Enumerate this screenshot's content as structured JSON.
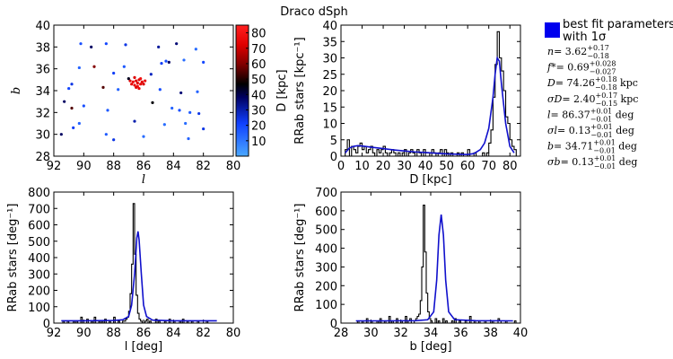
{
  "figure_title": "Draco dSph",
  "colors": {
    "fit_line": "#1010cc",
    "hist": "#000000",
    "legend_patch": "#0000ee"
  },
  "legend": {
    "header_line1": "best fit parameters",
    "header_line2": "with 1σ",
    "params": [
      {
        "sym": "n",
        "val": "= 3.62",
        "up": "+0.17",
        "lo": "−0.18",
        "unit": ""
      },
      {
        "sym": "f*",
        "val": "= 0.69",
        "up": "+0.028",
        "lo": "−0.027",
        "unit": ""
      },
      {
        "sym": "D",
        "val": "= 74.26",
        "up": "+0.18",
        "lo": "−0.18",
        "unit": " kpc"
      },
      {
        "sym": "σD",
        "val": "= 2.40",
        "up": "+0.17",
        "lo": "−0.15",
        "unit": " kpc"
      },
      {
        "sym": "l",
        "val": "= 86.37",
        "up": "+0.01",
        "lo": "−0.01",
        "unit": " deg"
      },
      {
        "sym": "σl",
        "val": "= 0.13",
        "up": "+0.01",
        "lo": "−0.01",
        "unit": " deg"
      },
      {
        "sym": "b",
        "val": "= 34.71",
        "up": "+0.01",
        "lo": "−0.01",
        "unit": " deg"
      },
      {
        "sym": "σb",
        "val": "= 0.13",
        "up": "+0.01",
        "lo": "−0.01",
        "unit": " deg"
      }
    ]
  },
  "chart_data": [
    {
      "type": "scatter",
      "xlabel": "l",
      "ylabel": "b",
      "xlim": [
        92,
        80
      ],
      "ylim": [
        28,
        40
      ],
      "xticks": [
        "92",
        "90",
        "88",
        "86",
        "84",
        "82",
        "80"
      ],
      "yticks": [
        "28",
        "30",
        "32",
        "34",
        "36",
        "38",
        "40"
      ],
      "colorbar": {
        "label": "D [kpc]",
        "range": [
          0,
          85
        ],
        "ticks": [
          "10",
          "20",
          "30",
          "40",
          "50",
          "60",
          "70",
          "80"
        ]
      },
      "points": [
        [
          86.4,
          34.7,
          74
        ],
        [
          86.5,
          34.9,
          72
        ],
        [
          86.2,
          34.6,
          76
        ],
        [
          86.6,
          34.5,
          75
        ],
        [
          86.3,
          35.0,
          73
        ],
        [
          86.7,
          34.8,
          77
        ],
        [
          86.1,
          34.8,
          74
        ],
        [
          86.4,
          34.4,
          78
        ],
        [
          86.0,
          34.6,
          71
        ],
        [
          86.8,
          34.6,
          75
        ],
        [
          86.5,
          34.3,
          73
        ],
        [
          86.2,
          35.1,
          79
        ],
        [
          86.9,
          34.9,
          74
        ],
        [
          85.9,
          34.9,
          76
        ],
        [
          86.3,
          34.2,
          75
        ],
        [
          86.6,
          35.2,
          72
        ],
        [
          90.2,
          38.3,
          18
        ],
        [
          89.5,
          38.0,
          38
        ],
        [
          88.5,
          38.3,
          20
        ],
        [
          87.2,
          38.2,
          24
        ],
        [
          85.0,
          38.0,
          32
        ],
        [
          83.8,
          38.3,
          36
        ],
        [
          82.5,
          37.8,
          12
        ],
        [
          84.5,
          36.7,
          18
        ],
        [
          84.8,
          36.5,
          22
        ],
        [
          84.3,
          36.6,
          38
        ],
        [
          82.0,
          36.6,
          20
        ],
        [
          89.3,
          36.2,
          60
        ],
        [
          90.3,
          36.1,
          14
        ],
        [
          87.3,
          36.2,
          16
        ],
        [
          88.0,
          35.6,
          22
        ],
        [
          85.5,
          35.5,
          28
        ],
        [
          83.3,
          36.8,
          12
        ],
        [
          90.8,
          34.6,
          24
        ],
        [
          91.0,
          34.2,
          20
        ],
        [
          88.7,
          34.3,
          55
        ],
        [
          87.7,
          34.1,
          14
        ],
        [
          84.9,
          34.1,
          18
        ],
        [
          83.5,
          33.8,
          36
        ],
        [
          82.4,
          33.9,
          14
        ],
        [
          91.3,
          33.0,
          38
        ],
        [
          90.8,
          32.4,
          55
        ],
        [
          90.0,
          32.6,
          18
        ],
        [
          88.4,
          32.2,
          16
        ],
        [
          84.1,
          32.4,
          14
        ],
        [
          83.6,
          32.2,
          18
        ],
        [
          82.9,
          32.0,
          16
        ],
        [
          82.3,
          31.9,
          24
        ],
        [
          90.3,
          31.0,
          14
        ],
        [
          86.6,
          31.2,
          30
        ],
        [
          84.6,
          30.9,
          12
        ],
        [
          83.2,
          31.0,
          12
        ],
        [
          82.0,
          30.5,
          24
        ],
        [
          88.5,
          30.0,
          16
        ],
        [
          91.5,
          30.0,
          38
        ],
        [
          88.0,
          29.5,
          24
        ],
        [
          86.0,
          29.8,
          12
        ],
        [
          83.0,
          29.6,
          14
        ],
        [
          90.7,
          30.6,
          22
        ],
        [
          85.4,
          32.9,
          46
        ],
        [
          87.0,
          35.1,
          44
        ]
      ]
    },
    {
      "type": "bar",
      "xlabel": "D [kpc]",
      "ylabel": "RRab stars [kpc⁻¹]",
      "xlim": [
        0,
        85
      ],
      "ylim": [
        0,
        40
      ],
      "xticks": [
        "0",
        "10",
        "20",
        "30",
        "40",
        "50",
        "60",
        "70",
        "80"
      ],
      "yticks": [
        "0",
        "5",
        "10",
        "15",
        "20",
        "25",
        "30",
        "35",
        "40"
      ],
      "hist": {
        "x0": 2,
        "dx": 1,
        "counts": [
          2,
          5,
          0,
          3,
          2,
          1,
          3,
          4,
          2,
          3,
          1,
          2,
          3,
          1,
          0,
          2,
          1,
          2,
          3,
          1,
          0,
          1,
          2,
          1,
          0,
          1,
          0,
          1,
          2,
          0,
          1,
          2,
          1,
          0,
          2,
          1,
          0,
          2,
          1,
          1,
          0,
          2,
          1,
          0,
          1,
          2,
          0,
          2,
          1,
          0,
          1,
          0,
          0,
          1,
          0,
          1,
          0,
          0,
          2,
          0,
          0,
          1,
          0,
          0,
          0,
          1,
          0,
          1,
          4,
          8,
          18,
          28,
          38,
          30,
          26,
          20,
          12,
          10,
          5,
          3,
          2
        ]
      },
      "fit": {
        "x": [
          2,
          4,
          6,
          8,
          10,
          15,
          20,
          25,
          30,
          35,
          40,
          45,
          50,
          55,
          60,
          63,
          66,
          68,
          70,
          72,
          73,
          74,
          75,
          76,
          78,
          80,
          82
        ],
        "y": [
          1.0,
          2.5,
          3.0,
          3.2,
          3.1,
          2.7,
          2.3,
          1.9,
          1.6,
          1.3,
          1.1,
          0.9,
          0.7,
          0.6,
          0.5,
          0.8,
          2.0,
          4.0,
          8.5,
          18,
          25,
          30,
          29,
          22,
          10,
          3,
          1
        ]
      }
    },
    {
      "type": "bar",
      "xlabel": "l [deg]",
      "ylabel": "RRab stars [deg⁻¹]",
      "xlim": [
        92,
        80
      ],
      "ylim": [
        0,
        800
      ],
      "xticks": [
        "92",
        "90",
        "88",
        "86",
        "84",
        "82",
        "80"
      ],
      "yticks": [
        "0",
        "100",
        "200",
        "300",
        "400",
        "500",
        "600",
        "700",
        "800"
      ],
      "hist": {
        "x0": 91.5,
        "dx": -0.1,
        "counts": [
          0,
          12,
          0,
          0,
          12,
          0,
          0,
          0,
          12,
          0,
          12,
          0,
          0,
          36,
          0,
          0,
          0,
          24,
          0,
          0,
          12,
          0,
          36,
          0,
          0,
          12,
          0,
          12,
          0,
          24,
          0,
          0,
          12,
          0,
          0,
          36,
          0,
          0,
          12,
          0,
          0,
          12,
          12,
          24,
          36,
          72,
          180,
          360,
          730,
          420,
          170,
          60,
          24,
          12,
          0,
          0,
          12,
          24,
          0,
          12,
          0,
          0,
          0,
          24,
          0,
          12,
          0,
          0,
          0,
          12,
          0,
          0,
          24,
          0,
          0,
          12,
          0,
          0,
          0,
          12,
          0,
          24,
          0,
          0,
          12,
          0,
          0,
          12,
          0,
          0,
          0,
          12,
          0,
          0,
          0,
          0,
          0,
          12,
          0,
          0,
          0,
          0,
          0,
          0,
          0,
          0
        ]
      },
      "fit": {
        "x": [
          91.5,
          90,
          88,
          87.4,
          87.0,
          86.8,
          86.6,
          86.45,
          86.37,
          86.3,
          86.15,
          86.0,
          85.8,
          85.4,
          84,
          82,
          81.1
        ],
        "y": [
          14,
          14,
          16,
          20,
          40,
          110,
          300,
          520,
          560,
          510,
          300,
          110,
          40,
          18,
          14,
          14,
          14
        ]
      }
    },
    {
      "type": "bar",
      "xlabel": "b [deg]",
      "ylabel": "RRab stars [deg⁻¹]",
      "xlim": [
        28,
        40
      ],
      "ylim": [
        0,
        700
      ],
      "xticks": [
        "28",
        "30",
        "32",
        "34",
        "36",
        "38",
        "40"
      ],
      "yticks": [
        "0",
        "100",
        "200",
        "300",
        "400",
        "500",
        "600",
        "700"
      ],
      "hist": {
        "x0": 29.0,
        "dx": 0.1,
        "counts": [
          0,
          12,
          0,
          0,
          12,
          0,
          0,
          24,
          0,
          0,
          12,
          0,
          0,
          0,
          12,
          0,
          24,
          0,
          0,
          12,
          0,
          0,
          36,
          0,
          12,
          0,
          0,
          24,
          0,
          0,
          12,
          0,
          0,
          36,
          0,
          12,
          24,
          0,
          0,
          12,
          24,
          36,
          48,
          120,
          300,
          630,
          380,
          160,
          60,
          24,
          12,
          0,
          0,
          24,
          0,
          12,
          0,
          0,
          24,
          0,
          12,
          0,
          0,
          0,
          12,
          0,
          24,
          0,
          0,
          12,
          0,
          0,
          0,
          12,
          0,
          0,
          36,
          0,
          0,
          12,
          0,
          0,
          12,
          0,
          0,
          0,
          12,
          0,
          0,
          0,
          0,
          12,
          0,
          0,
          0,
          24,
          12,
          0,
          0,
          0,
          12,
          0,
          0,
          0,
          0,
          0,
          12
        ]
      },
      "fit": {
        "x": [
          29,
          31,
          33,
          33.8,
          34.2,
          34.4,
          34.55,
          34.7,
          34.85,
          35.0,
          35.2,
          35.6,
          37,
          39.5
        ],
        "y": [
          12,
          12,
          13,
          18,
          60,
          230,
          470,
          580,
          470,
          230,
          60,
          18,
          13,
          12
        ]
      }
    }
  ]
}
